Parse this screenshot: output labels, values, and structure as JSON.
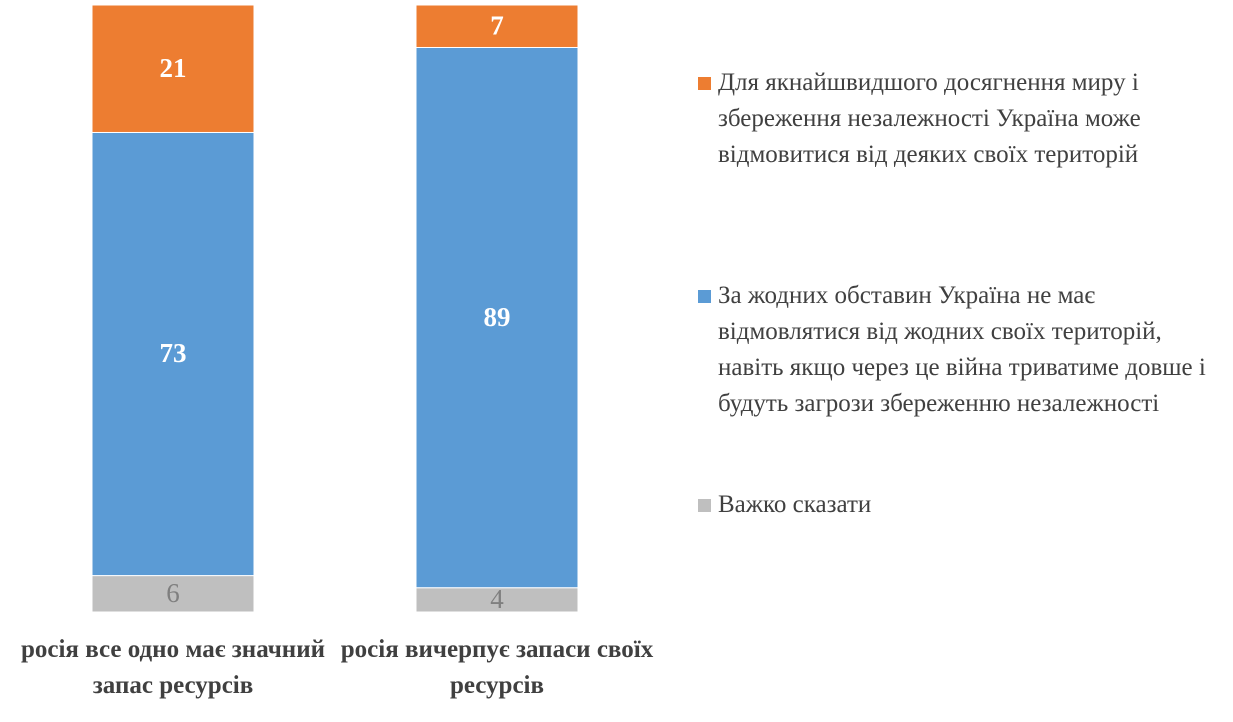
{
  "chart_data": {
    "type": "stacked_bar",
    "categories": [
      "росія все одно має значний запас ресурсів",
      "росія вичерпує запаси своїх ресурсів"
    ],
    "ylim": [
      0,
      100
    ],
    "series": [
      {
        "name": "Важко сказати",
        "color": "#bfbfbf",
        "label_color": "#7f7f7f",
        "values": [
          6,
          4
        ]
      },
      {
        "name": "За жодних обставин Україна не має відмовлятися від жодних своїх територій, навіть якщо через це війна триватиме довше і будуть загрози збереженню незалежності",
        "color": "#5b9bd5",
        "label_color": "#ffffff",
        "values": [
          73,
          89
        ]
      },
      {
        "name": "Для якнайшвидшого досягнення миру і збереження незалежності Україна може відмовитися від деяких своїх територій",
        "color": "#ed7d31",
        "label_color": "#ffffff",
        "values": [
          21,
          7
        ]
      }
    ]
  }
}
